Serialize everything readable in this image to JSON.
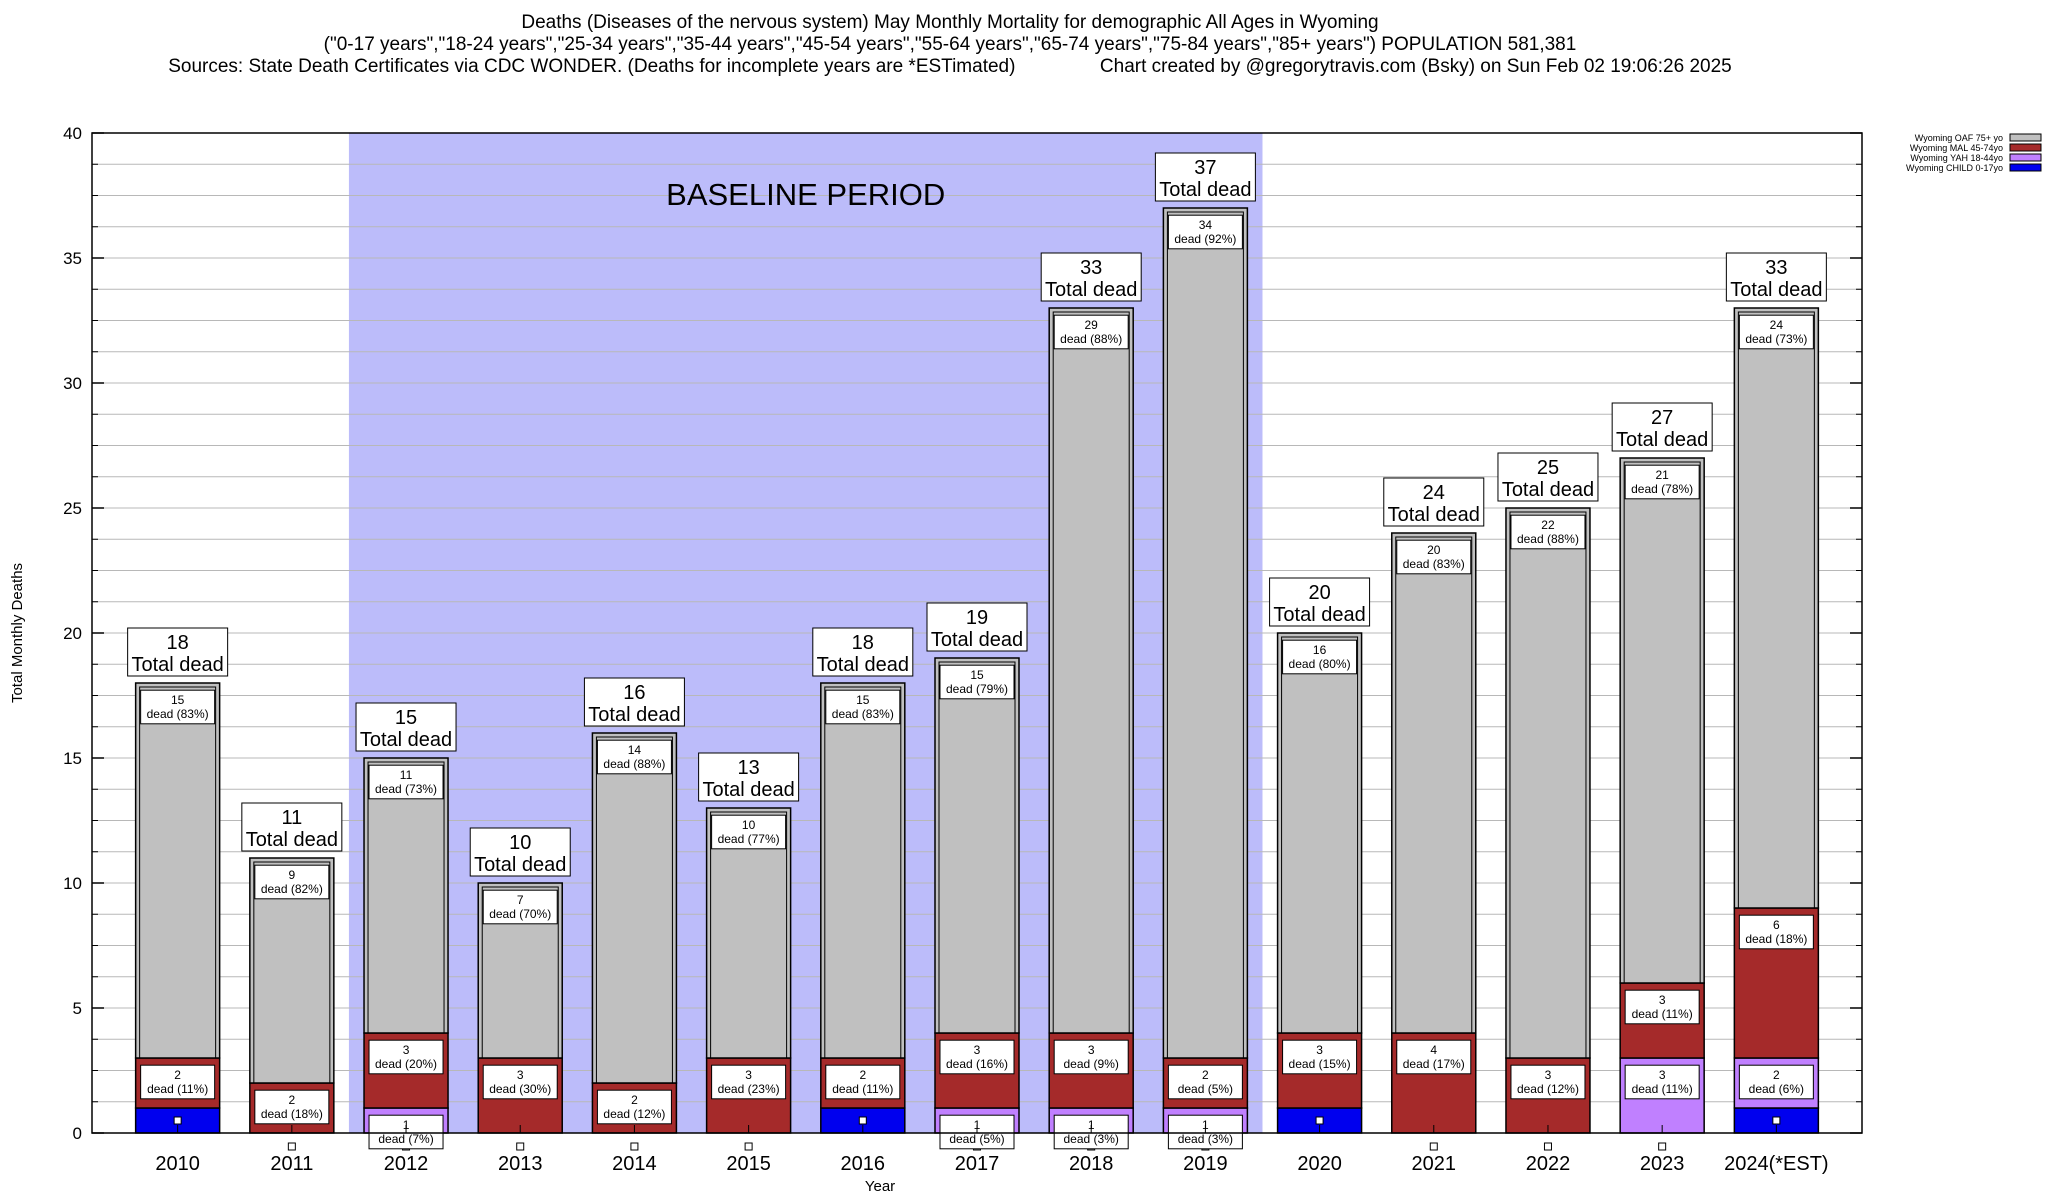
{
  "header": {
    "title": "Deaths (Diseases of the nervous system) May Monthly Mortality for demographic All Ages in Wyoming",
    "subtitle": "(\"0-17 years\",\"18-24 years\",\"25-34 years\",\"35-44 years\",\"45-54 years\",\"55-64 years\",\"65-74 years\",\"75-84 years\",\"85+ years\") POPULATION 581,381",
    "sources": "Sources: State Death Certificates via CDC WONDER. (Deaths for incomplete years are *ESTimated)",
    "credit": "Chart created by @gregorytravis.com (Bsky) on Sun Feb 02 19:06:26 2025"
  },
  "chart_data": {
    "type": "bar",
    "stacked": true,
    "xlabel": "Year",
    "ylabel": "Total Monthly Deaths",
    "ylim": [
      0,
      40
    ],
    "yticks": [
      0,
      5,
      10,
      15,
      20,
      25,
      30,
      35,
      40
    ],
    "grid": true,
    "legend_position": "top-right",
    "baseline": {
      "label": "BASELINE PERIOD",
      "from": "2012",
      "to": "2019",
      "color": "#bcbcfa"
    },
    "total_suffix": "Total dead",
    "categories": [
      "2010",
      "2011",
      "2012",
      "2013",
      "2014",
      "2015",
      "2016",
      "2017",
      "2018",
      "2019",
      "2020",
      "2021",
      "2022",
      "2023",
      "2024(*EST)"
    ],
    "totals": [
      18,
      11,
      15,
      10,
      16,
      13,
      18,
      19,
      33,
      37,
      20,
      24,
      25,
      27,
      33
    ],
    "series": [
      {
        "name": "Wyoming CHILD 0-17yo",
        "color": "#0000ee",
        "values": [
          1,
          0,
          0,
          0,
          0,
          0,
          1,
          0,
          0,
          0,
          1,
          0,
          0,
          0,
          1
        ],
        "labels": [
          null,
          null,
          null,
          null,
          null,
          null,
          null,
          null,
          null,
          null,
          null,
          null,
          null,
          null,
          null
        ]
      },
      {
        "name": "Wyoming YAH 18-44yo",
        "color": "#c080ff",
        "values": [
          0,
          0,
          1,
          0,
          0,
          0,
          0,
          1,
          1,
          1,
          0,
          0,
          0,
          3,
          2
        ],
        "labels": [
          null,
          null,
          "1\ndead (7%)",
          null,
          null,
          null,
          null,
          "1\ndead (5%)",
          "1\ndead (3%)",
          "1\ndead (3%)",
          null,
          null,
          null,
          "3\ndead (11%)",
          "2\ndead (6%)"
        ]
      },
      {
        "name": "Wyoming MAL 45-74yo",
        "color": "#a52a2a",
        "values": [
          2,
          2,
          3,
          3,
          2,
          3,
          2,
          3,
          3,
          2,
          3,
          4,
          3,
          3,
          6
        ],
        "labels": [
          "2\ndead (11%)",
          "2\ndead (18%)",
          "3\ndead (20%)",
          "3\ndead (30%)",
          "2\ndead (12%)",
          "3\ndead (23%)",
          "2\ndead (11%)",
          "3\ndead (16%)",
          "3\ndead (9%)",
          "2\ndead (5%)",
          "3\ndead (15%)",
          "4\ndead (17%)",
          "3\ndead (12%)",
          "3\ndead (11%)",
          "6\ndead (18%)"
        ]
      },
      {
        "name": "Wyoming OAF 75+ yo",
        "color": "#c0c0c0",
        "values": [
          15,
          9,
          11,
          7,
          14,
          10,
          15,
          15,
          29,
          34,
          16,
          20,
          22,
          21,
          24
        ],
        "labels": [
          "15\ndead (83%)",
          "9\ndead (82%)",
          "11\ndead (73%)",
          "7\ndead (70%)",
          "14\ndead (88%)",
          "10\ndead (77%)",
          "15\ndead (83%)",
          "15\ndead (79%)",
          "29\ndead (88%)",
          "34\ndead (92%)",
          "16\ndead (80%)",
          "20\ndead (83%)",
          "22\ndead (88%)",
          "21\ndead (78%)",
          "24\ndead (73%)"
        ]
      }
    ]
  }
}
